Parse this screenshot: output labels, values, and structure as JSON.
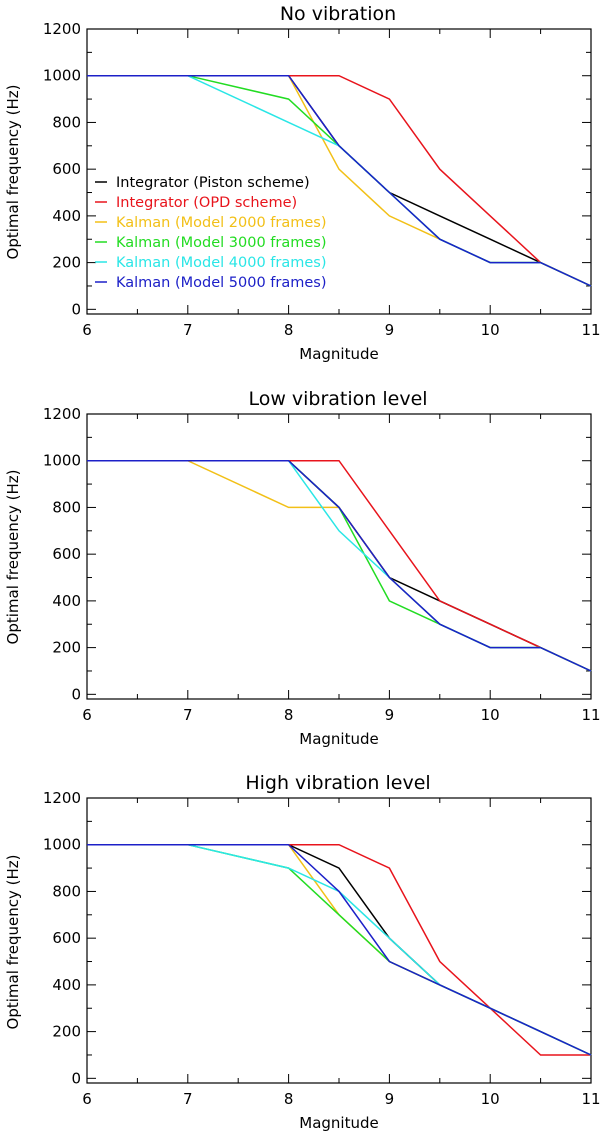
{
  "chart_data": [
    {
      "type": "line",
      "title": "No vibration",
      "xlabel": "Magnitude",
      "ylabel": "Optimal frequency (Hz)",
      "xlim": [
        6,
        11
      ],
      "ylim": [
        -20,
        1200
      ],
      "xticks": [
        6,
        7,
        8,
        9,
        10,
        11
      ],
      "yticks": [
        0,
        200,
        400,
        600,
        800,
        1000,
        1200
      ],
      "legend_position": "left",
      "series": [
        {
          "name": "Integrator (Piston scheme)",
          "color": "#000000",
          "x": [
            6,
            7,
            8,
            8.5,
            9,
            9.5,
            10,
            10.5,
            11
          ],
          "y": [
            1000,
            1000,
            1000,
            700,
            500,
            400,
            300,
            200,
            100
          ]
        },
        {
          "name": "Integrator (OPD scheme)",
          "color": "#e8141c",
          "x": [
            6,
            7,
            8,
            8.5,
            9,
            9.5,
            10,
            10.5,
            11
          ],
          "y": [
            1000,
            1000,
            1000,
            1000,
            900,
            600,
            400,
            200,
            100
          ]
        },
        {
          "name": "Kalman (Model 2000 frames)",
          "color": "#f2c017",
          "x": [
            6,
            7,
            8,
            8.5,
            9,
            9.5,
            10,
            10.5,
            11
          ],
          "y": [
            1000,
            1000,
            1000,
            600,
            400,
            300,
            200,
            200,
            100
          ]
        },
        {
          "name": "Kalman (Model 3000 frames)",
          "color": "#22dc22",
          "x": [
            6,
            7,
            8,
            8.5,
            9,
            9.5,
            10,
            10.5,
            11
          ],
          "y": [
            1000,
            1000,
            900,
            700,
            500,
            300,
            200,
            200,
            100
          ]
        },
        {
          "name": "Kalman (Model 4000 frames)",
          "color": "#2ae6e6",
          "x": [
            6,
            7,
            8,
            8.5,
            9,
            9.5,
            10,
            10.5,
            11
          ],
          "y": [
            1000,
            1000,
            800,
            700,
            500,
            300,
            200,
            200,
            100
          ]
        },
        {
          "name": "Kalman (Model 5000 frames)",
          "color": "#1c20c8",
          "x": [
            6,
            7,
            8,
            8.5,
            9,
            9.5,
            10,
            10.5,
            11
          ],
          "y": [
            1000,
            1000,
            1000,
            700,
            500,
            300,
            200,
            200,
            100
          ]
        }
      ]
    },
    {
      "type": "line",
      "title": "Low vibration level",
      "xlabel": "Magnitude",
      "ylabel": "Optimal frequency (Hz)",
      "xlim": [
        6,
        11
      ],
      "ylim": [
        -20,
        1200
      ],
      "xticks": [
        6,
        7,
        8,
        9,
        10,
        11
      ],
      "yticks": [
        0,
        200,
        400,
        600,
        800,
        1000,
        1200
      ],
      "series": [
        {
          "name": "Integrator (Piston scheme)",
          "color": "#000000",
          "x": [
            6,
            7,
            8,
            8.5,
            9,
            9.5,
            10,
            10.5,
            11
          ],
          "y": [
            1000,
            1000,
            1000,
            800,
            500,
            400,
            300,
            200,
            100
          ]
        },
        {
          "name": "Integrator (OPD scheme)",
          "color": "#e8141c",
          "x": [
            6,
            7,
            8,
            8.5,
            9,
            9.5,
            10,
            10.5,
            11
          ],
          "y": [
            1000,
            1000,
            1000,
            1000,
            700,
            400,
            300,
            200,
            100
          ]
        },
        {
          "name": "Kalman (Model 2000 frames)",
          "color": "#f2c017",
          "x": [
            6,
            7,
            8,
            8.5,
            9,
            9.5,
            10,
            10.5,
            11
          ],
          "y": [
            1000,
            1000,
            800,
            800,
            500,
            300,
            200,
            200,
            100
          ]
        },
        {
          "name": "Kalman (Model 3000 frames)",
          "color": "#22dc22",
          "x": [
            6,
            7,
            8,
            8.5,
            9,
            9.5,
            10,
            10.5,
            11
          ],
          "y": [
            1000,
            1000,
            1000,
            800,
            400,
            300,
            200,
            200,
            100
          ]
        },
        {
          "name": "Kalman (Model 4000 frames)",
          "color": "#2ae6e6",
          "x": [
            6,
            7,
            8,
            8.5,
            9,
            9.5,
            10,
            10.5,
            11
          ],
          "y": [
            1000,
            1000,
            1000,
            700,
            500,
            300,
            200,
            200,
            100
          ]
        },
        {
          "name": "Kalman (Model 5000 frames)",
          "color": "#1c20c8",
          "x": [
            6,
            7,
            8,
            8.5,
            9,
            9.5,
            10,
            10.5,
            11
          ],
          "y": [
            1000,
            1000,
            1000,
            800,
            500,
            300,
            200,
            200,
            100
          ]
        }
      ]
    },
    {
      "type": "line",
      "title": "High vibration level",
      "xlabel": "Magnitude",
      "ylabel": "Optimal frequency (Hz)",
      "xlim": [
        6,
        11
      ],
      "ylim": [
        -20,
        1200
      ],
      "xticks": [
        6,
        7,
        8,
        9,
        10,
        11
      ],
      "yticks": [
        0,
        200,
        400,
        600,
        800,
        1000,
        1200
      ],
      "series": [
        {
          "name": "Integrator (Piston scheme)",
          "color": "#000000",
          "x": [
            6,
            7,
            8,
            8.5,
            9,
            9.5,
            10,
            10.5,
            11
          ],
          "y": [
            1000,
            1000,
            1000,
            900,
            600,
            400,
            300,
            200,
            100
          ]
        },
        {
          "name": "Integrator (OPD scheme)",
          "color": "#e8141c",
          "x": [
            6,
            7,
            8,
            8.5,
            9,
            9.5,
            10,
            10.5,
            11
          ],
          "y": [
            1000,
            1000,
            1000,
            1000,
            900,
            500,
            300,
            100,
            100
          ]
        },
        {
          "name": "Kalman (Model 2000 frames)",
          "color": "#f2c017",
          "x": [
            6,
            7,
            8,
            8.5,
            9,
            9.5,
            10,
            10.5,
            11
          ],
          "y": [
            1000,
            1000,
            1000,
            700,
            500,
            400,
            300,
            200,
            100
          ]
        },
        {
          "name": "Kalman (Model 3000 frames)",
          "color": "#22dc22",
          "x": [
            6,
            7,
            8,
            8.5,
            9,
            9.5,
            10,
            10.5,
            11
          ],
          "y": [
            1000,
            1000,
            900,
            700,
            500,
            400,
            300,
            200,
            100
          ]
        },
        {
          "name": "Kalman (Model 4000 frames)",
          "color": "#2ae6e6",
          "x": [
            6,
            7,
            8,
            8.5,
            9,
            9.5,
            10,
            10.5,
            11
          ],
          "y": [
            1000,
            1000,
            900,
            800,
            600,
            400,
            300,
            200,
            100
          ]
        },
        {
          "name": "Kalman (Model 5000 frames)",
          "color": "#1c20c8",
          "x": [
            6,
            7,
            8,
            8.5,
            9,
            9.5,
            10,
            10.5,
            11
          ],
          "y": [
            1000,
            1000,
            1000,
            800,
            500,
            400,
            300,
            200,
            100
          ]
        }
      ]
    }
  ]
}
